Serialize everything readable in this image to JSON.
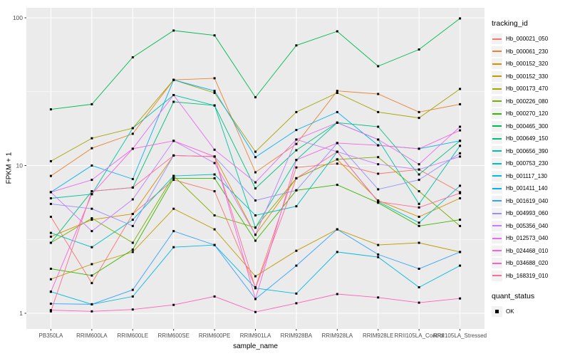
{
  "chart_data": {
    "type": "line",
    "title": "",
    "xlabel": "sample_name",
    "ylabel": "FPKM + 1",
    "x_categories": [
      "PB350LA",
      "RRIM600LA",
      "RRIM600LE",
      "RRIM600SE",
      "RRIM600PE",
      "RRIM901LA",
      "RRIM928BA",
      "RRIM928LA",
      "RRIM928LE",
      "RRII105LA_Control",
      "RRII105LA_Stressed"
    ],
    "y_scale": "log10",
    "y_ticks": [
      1,
      10,
      100
    ],
    "y_tick_labels": [
      "1",
      "10",
      "100"
    ],
    "y_minor_ticks": [
      3.1623,
      31.623
    ],
    "ylim": [
      0.78,
      117
    ],
    "grid": "on",
    "panel_bg": "#EBEBEB",
    "grid_major_color": "#FFFFFF",
    "grid_minor_color": "#FFFFFF",
    "tick_text_color": "#4D4D4D",
    "point_marker": {
      "shape": "square",
      "color": "#000000"
    },
    "legend": {
      "position": "right",
      "series_title": "tracking_id",
      "status_title": "quant_status",
      "status_items": [
        {
          "label": "OK",
          "marker": "black-square"
        }
      ]
    },
    "series": [
      {
        "name": "Hb_000021_050",
        "color": "#F8766D",
        "values": [
          4.5,
          1.6,
          4.7,
          8.0,
          6.7,
          1.5,
          9.7,
          10.3,
          8.8,
          9.4,
          6.6
        ]
      },
      {
        "name": "Hb_000061_230",
        "color": "#EA8331",
        "values": [
          8.5,
          13.1,
          16.4,
          38,
          39,
          9.0,
          14.0,
          32,
          30.5,
          23,
          26
        ]
      },
      {
        "name": "Hb_000152_320",
        "color": "#D89000",
        "values": [
          3.3,
          4.3,
          4.7,
          11.7,
          11.5,
          3.4,
          8.2,
          11.0,
          5.8,
          4.5,
          6.0
        ]
      },
      {
        "name": "Hb_000152_330",
        "color": "#C09B00",
        "values": [
          1.7,
          2.15,
          2.6,
          5.1,
          3.7,
          1.78,
          2.65,
          3.7,
          2.9,
          3.0,
          2.6
        ]
      },
      {
        "name": "Hb_000173_470",
        "color": "#A3A500",
        "values": [
          10.7,
          15.3,
          17.9,
          38,
          31,
          12.4,
          23,
          31,
          23,
          21,
          33
        ]
      },
      {
        "name": "Hb_000226_080",
        "color": "#7CAE00",
        "values": [
          3.0,
          4.4,
          3.0,
          8.5,
          4.6,
          3.8,
          8.2,
          11.0,
          11.4,
          6.7,
          3.9
        ]
      },
      {
        "name": "Hb_000270_120",
        "color": "#39B600",
        "values": [
          2.0,
          1.8,
          2.7,
          8.2,
          8.2,
          3.1,
          6.8,
          7.4,
          5.6,
          3.9,
          4.3
        ]
      },
      {
        "name": "Hb_000465_300",
        "color": "#00BB4E",
        "values": [
          24,
          26,
          54,
          82,
          76,
          29,
          65,
          81,
          47,
          61,
          99
        ]
      },
      {
        "name": "Hb_000649_150",
        "color": "#00BF7D",
        "values": [
          3.0,
          6.7,
          7.1,
          27,
          25.5,
          7.0,
          12.7,
          19.5,
          18.3,
          8.7,
          14.7
        ]
      },
      {
        "name": "Hb_000656_390",
        "color": "#00C1A3",
        "values": [
          6.0,
          6.4,
          17.9,
          30,
          25.5,
          3.8,
          10.9,
          19.5,
          15.0,
          5.5,
          13.6
        ]
      },
      {
        "name": "Hb_000753_230",
        "color": "#00BFC4",
        "values": [
          3.5,
          2.8,
          4.3,
          8.5,
          8.7,
          4.6,
          5.3,
          12.4,
          5.7,
          4.1,
          7.3
        ]
      },
      {
        "name": "Hb_001117_130",
        "color": "#00BAE0",
        "values": [
          1.4,
          1.15,
          1.3,
          2.8,
          2.9,
          1.48,
          1.36,
          2.6,
          2.4,
          1.5,
          2.1
        ]
      },
      {
        "name": "Hb_001411_140",
        "color": "#00B0F6",
        "values": [
          6.6,
          10.0,
          8.1,
          38,
          32,
          11.4,
          17.4,
          23,
          13.7,
          13.0,
          14.7
        ]
      },
      {
        "name": "Hb_001619_040",
        "color": "#35A2FF",
        "values": [
          1.16,
          1.15,
          1.44,
          3.6,
          2.9,
          1.25,
          2.1,
          3.7,
          2.5,
          2.0,
          2.6
        ]
      },
      {
        "name": "Hb_004993_060",
        "color": "#9590FF",
        "values": [
          5.5,
          5.1,
          3.9,
          11.7,
          11.5,
          5.8,
          6.8,
          14.2,
          6.9,
          8.0,
          12.1
        ]
      },
      {
        "name": "Hb_005356_040",
        "color": "#C77CFF",
        "values": [
          6.6,
          3.6,
          5.9,
          14.7,
          10.4,
          3.4,
          15.0,
          12.4,
          10.2,
          9.4,
          11.5
        ]
      },
      {
        "name": "Hb_012573_040",
        "color": "#E76BF3",
        "values": [
          6.6,
          8.0,
          13.0,
          30,
          12.8,
          7.7,
          15.0,
          19.5,
          15.0,
          10.2,
          18.3
        ]
      },
      {
        "name": "Hb_024468_010",
        "color": "#FA62DB",
        "values": [
          1.4,
          6.4,
          13.0,
          14.7,
          11.5,
          1.25,
          10.9,
          14.2,
          13.7,
          13.0,
          17.3
        ]
      },
      {
        "name": "Hb_034688_020",
        "color": "#FF62BC",
        "values": [
          1.05,
          1.03,
          1.06,
          1.14,
          1.3,
          1.02,
          1.17,
          1.35,
          1.28,
          1.18,
          1.26
        ]
      },
      {
        "name": "Hb_168319_010",
        "color": "#FF6A98",
        "values": [
          1.03,
          6.7,
          7.1,
          11.7,
          11.5,
          1.48,
          8.2,
          12.4,
          5.7,
          5.2,
          6.5
        ]
      }
    ]
  }
}
